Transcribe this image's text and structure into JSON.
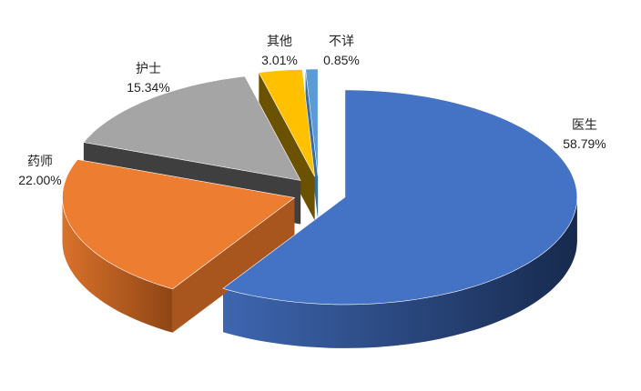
{
  "chart_data": {
    "type": "pie",
    "style": "3d-exploded",
    "categories": [
      "医生",
      "药师",
      "护士",
      "其他",
      "不详"
    ],
    "values": [
      58.79,
      22.0,
      15.34,
      3.01,
      0.85
    ],
    "labels": [
      "58.79%",
      "22.00%",
      "15.34%",
      "3.01%",
      "0.85%"
    ],
    "colors": [
      "#4472C4",
      "#ED7D31",
      "#A5A5A5",
      "#FFC000",
      "#5B9BD5"
    ],
    "side_colors": [
      "#2A4A85",
      "#A9561E",
      "#3F3F3F",
      "#6B5200",
      "#3A6EA0"
    ],
    "legend": "none"
  }
}
